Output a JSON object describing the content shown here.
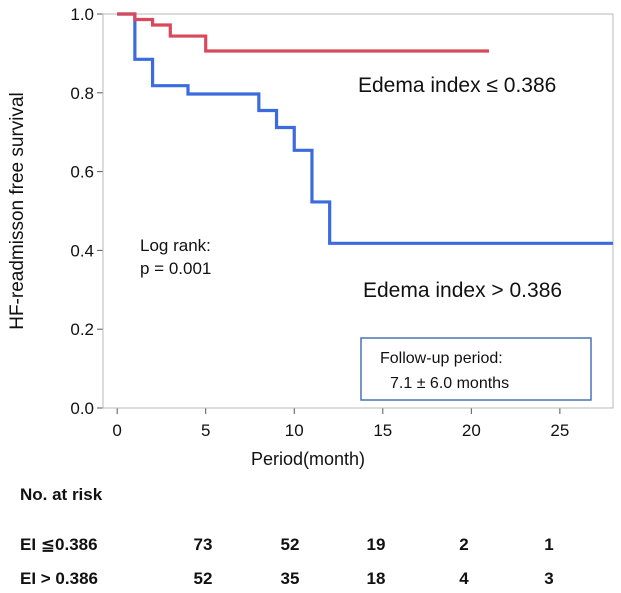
{
  "chart_data": {
    "type": "line",
    "title": "",
    "xlabel": "Period(month)",
    "ylabel": "HF-readmisson free survival",
    "xlim": [
      -0.8,
      28
    ],
    "ylim": [
      0,
      1.0
    ],
    "xticks": [
      0,
      5,
      10,
      15,
      20,
      25
    ],
    "yticks": [
      0.0,
      0.2,
      0.4,
      0.6,
      0.8,
      1.0
    ],
    "xtick_labels": [
      "0",
      "5",
      "10",
      "15",
      "20",
      "25"
    ],
    "ytick_labels": [
      "0.0",
      "0.2",
      "0.4",
      "0.6",
      "0.8",
      "1.0"
    ],
    "grid": false,
    "series": [
      {
        "name": "Edema index ≤ 0.386",
        "color": "#d84a5a",
        "step": true,
        "x": [
          0,
          1,
          2,
          3,
          5,
          21
        ],
        "y": [
          1.0,
          0.986,
          0.972,
          0.944,
          0.906,
          0.906
        ]
      },
      {
        "name": "Edema index > 0.386",
        "color": "#3b6bdc",
        "step": true,
        "x": [
          0,
          1,
          2,
          4,
          8,
          9,
          10,
          11,
          12,
          28
        ],
        "y": [
          1.0,
          0.885,
          0.818,
          0.797,
          0.755,
          0.712,
          0.654,
          0.523,
          0.418,
          0.418
        ]
      }
    ],
    "annotations": {
      "log_rank_line1": "Log rank:",
      "log_rank_line2": "p = 0.001",
      "followup_line1": "Follow-up period:",
      "followup_line2": "7.1 ± 6.0 months"
    }
  },
  "risk_table": {
    "title": "No. at risk",
    "time_points": [
      0,
      5,
      10,
      15,
      20
    ],
    "rows": [
      {
        "label": "EI ≦0.386",
        "values": [
          "73",
          "52",
          "19",
          "2",
          "1"
        ]
      },
      {
        "label": "EI > 0.386",
        "values": [
          "52",
          "35",
          "18",
          "4",
          "3"
        ]
      }
    ]
  }
}
